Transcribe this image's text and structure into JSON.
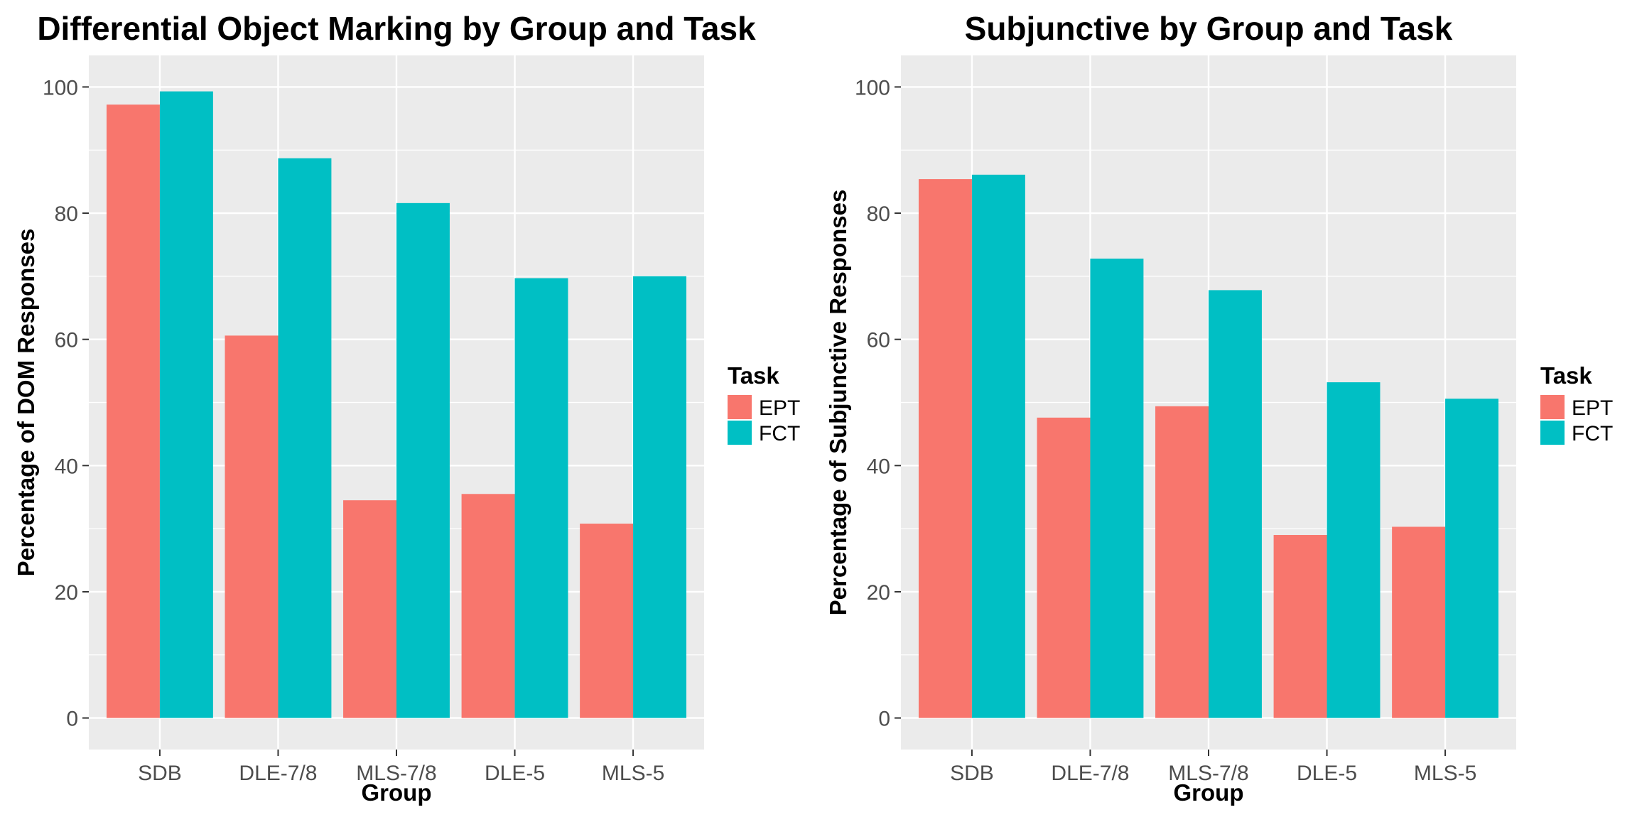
{
  "colors": {
    "EPT": "#F8766D",
    "FCT": "#00BFC4",
    "panel_bg": "#EBEBEB",
    "grid": "#FFFFFF",
    "tick_text": "#4D4D4D"
  },
  "chart_data": [
    {
      "type": "bar",
      "title": "Differential Object Marking by Group and Task",
      "xlabel": "Group",
      "ylabel": "Percentage of DOM Responses",
      "categories": [
        "SDB",
        "DLE-7/8",
        "MLS-7/8",
        "DLE-5",
        "MLS-5"
      ],
      "series": [
        {
          "name": "EPT",
          "values": [
            97.2,
            60.6,
            34.5,
            35.5,
            30.8
          ]
        },
        {
          "name": "FCT",
          "values": [
            99.3,
            88.7,
            81.6,
            69.7,
            70.0
          ]
        }
      ],
      "ylim": [
        -5,
        105
      ],
      "yticks": [
        0,
        20,
        40,
        60,
        80,
        100
      ],
      "grid": true,
      "legend": {
        "title": "Task",
        "position": "right",
        "items": [
          "EPT",
          "FCT"
        ]
      }
    },
    {
      "type": "bar",
      "title": "Subjunctive by Group and Task",
      "xlabel": "Group",
      "ylabel": "Percentage of Subjunctive Responses",
      "categories": [
        "SDB",
        "DLE-7/8",
        "MLS-7/8",
        "DLE-5",
        "MLS-5"
      ],
      "series": [
        {
          "name": "EPT",
          "values": [
            85.4,
            47.6,
            49.4,
            29.0,
            30.3
          ]
        },
        {
          "name": "FCT",
          "values": [
            86.1,
            72.8,
            67.8,
            53.2,
            50.6
          ]
        }
      ],
      "ylim": [
        -5,
        105
      ],
      "yticks": [
        0,
        20,
        40,
        60,
        80,
        100
      ],
      "grid": true,
      "legend": {
        "title": "Task",
        "position": "right",
        "items": [
          "EPT",
          "FCT"
        ]
      }
    }
  ]
}
